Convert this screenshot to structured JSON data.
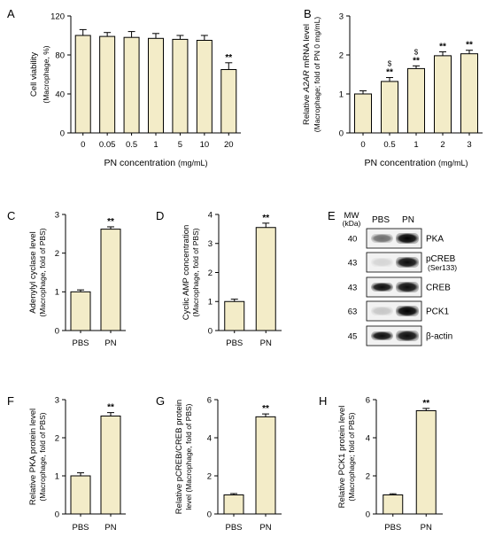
{
  "colors": {
    "bar": "#f3ecc8",
    "bar_edge": "#000000",
    "axis": "#000000"
  },
  "blot": {
    "letter": "E",
    "mw_label": "MW",
    "mw_unit": "(kDa)",
    "lanes": [
      "PBS",
      "PN"
    ],
    "rows": [
      {
        "mw": "40",
        "label": "PKA",
        "sub": "",
        "pbs": 0.55,
        "pn": 1.0
      },
      {
        "mw": "43",
        "label": "pCREB",
        "sub": "(Ser133)",
        "pbs": 0.12,
        "pn": 0.95
      },
      {
        "mw": "43",
        "label": "CREB",
        "sub": "",
        "pbs": 0.95,
        "pn": 0.95
      },
      {
        "mw": "63",
        "label": "PCK1",
        "sub": "",
        "pbs": 0.18,
        "pn": 1.0
      },
      {
        "mw": "45",
        "label": "β-actin",
        "sub": "",
        "pbs": 0.95,
        "pn": 0.95
      }
    ]
  },
  "chart_data": [
    {
      "letter": "A",
      "type": "bar",
      "categories": [
        "0",
        "0.05",
        "0.5",
        "1",
        "5",
        "10",
        "20"
      ],
      "values": [
        100,
        99,
        98,
        97,
        96,
        95,
        65
      ],
      "errors": [
        6,
        4,
        6,
        5,
        4,
        5,
        7
      ],
      "ylim": [
        0,
        120
      ],
      "yticks": [
        0,
        40,
        80,
        120
      ],
      "ylabel": "Cell viability",
      "ylabel2": "(Macrophage, %)",
      "xlabel": "PN concentration",
      "xlabel_unit": "(mg/mL)",
      "annotations": [
        "",
        "",
        "",
        "",
        "",
        "",
        "**"
      ],
      "annotations2": [
        "",
        "",
        "",
        "",
        "",
        "",
        ""
      ]
    },
    {
      "letter": "B",
      "type": "bar",
      "categories": [
        "0",
        "0.5",
        "1",
        "2",
        "3"
      ],
      "values": [
        1.0,
        1.32,
        1.65,
        1.98,
        2.03
      ],
      "errors": [
        0.08,
        0.1,
        0.07,
        0.1,
        0.09
      ],
      "ylim": [
        0,
        3
      ],
      "yticks": [
        0,
        1,
        2,
        3
      ],
      "ylabel_pre": "Relative ",
      "ylabel_em": "A2AR",
      "ylabel_post": " mRNA level",
      "ylabel2": "(Macrophage; fold of PN 0 mg/mL)",
      "xlabel": "PN concentration",
      "xlabel_unit": "(mg/mL)",
      "annotations": [
        "",
        "**",
        "**",
        "**",
        "**"
      ],
      "annotations2": [
        "",
        "$",
        "$",
        "",
        ""
      ]
    },
    {
      "letter": "C",
      "type": "bar",
      "categories": [
        "PBS",
        "PN"
      ],
      "values": [
        1.0,
        2.62
      ],
      "errors": [
        0.05,
        0.06
      ],
      "ylim": [
        0,
        3
      ],
      "yticks": [
        0,
        1,
        2,
        3
      ],
      "ylabel": "Adenylyl cyclase level",
      "ylabel2": "(Macrophage, fold of PBS)",
      "annotations": [
        "",
        "**"
      ],
      "annotations2": [
        "",
        ""
      ]
    },
    {
      "letter": "D",
      "type": "bar",
      "categories": [
        "PBS",
        "PN"
      ],
      "values": [
        1.0,
        3.55
      ],
      "errors": [
        0.08,
        0.15
      ],
      "ylim": [
        0,
        4
      ],
      "yticks": [
        0,
        1,
        2,
        3,
        4
      ],
      "ylabel": "Cyclic AMP concentration",
      "ylabel2": "(Macrophage, fold of PBS)",
      "annotations": [
        "",
        "**"
      ],
      "annotations2": [
        "",
        ""
      ]
    },
    {
      "letter": "F",
      "type": "bar",
      "categories": [
        "PBS",
        "PN"
      ],
      "values": [
        1.0,
        2.57
      ],
      "errors": [
        0.08,
        0.09
      ],
      "ylim": [
        0,
        3
      ],
      "yticks": [
        0,
        1,
        2,
        3
      ],
      "ylabel": "Relative PKA protein level",
      "ylabel2": "(Macrophage, fold of PBS)",
      "annotations": [
        "",
        "**"
      ],
      "annotations2": [
        "",
        ""
      ]
    },
    {
      "letter": "G",
      "type": "bar",
      "categories": [
        "PBS",
        "PN"
      ],
      "values": [
        1.0,
        5.1
      ],
      "errors": [
        0.07,
        0.15
      ],
      "ylim": [
        0,
        6
      ],
      "yticks": [
        0,
        2,
        4,
        6
      ],
      "ylabel": "Relative pCREB/CREB protein",
      "ylabel2": "level (Macrophage, fold of PBS)",
      "annotations": [
        "",
        "**"
      ],
      "annotations2": [
        "",
        ""
      ]
    },
    {
      "letter": "H",
      "type": "bar",
      "categories": [
        "PBS",
        "PN"
      ],
      "values": [
        1.0,
        5.42
      ],
      "errors": [
        0.06,
        0.12
      ],
      "ylim": [
        0,
        6
      ],
      "yticks": [
        0,
        2,
        4,
        6
      ],
      "ylabel": "Relative PCK1 protein level",
      "ylabel2": "(Macrophage; fold of PBS)",
      "annotations": [
        "",
        "**"
      ],
      "annotations2": [
        "",
        ""
      ]
    }
  ]
}
